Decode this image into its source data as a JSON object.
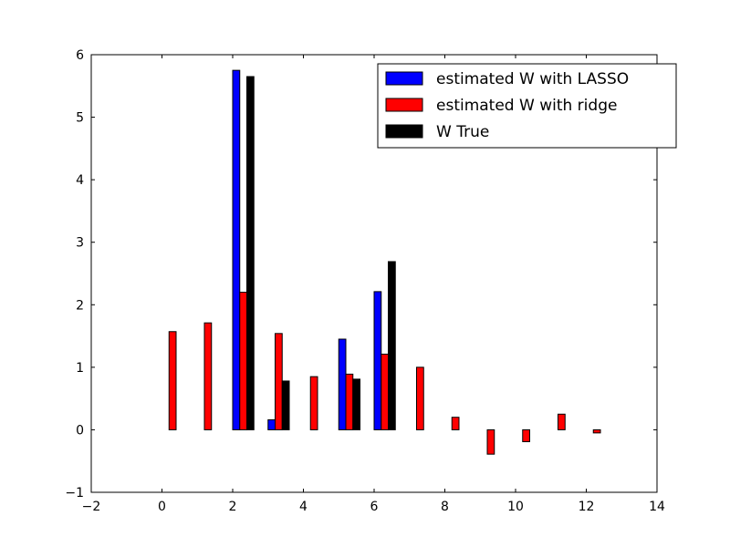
{
  "chart_data": {
    "type": "bar",
    "title": "",
    "xlabel": "",
    "ylabel": "",
    "xlim": [
      -2,
      14
    ],
    "ylim": [
      -1,
      6
    ],
    "xticks": [
      -2,
      0,
      2,
      4,
      6,
      8,
      10,
      12,
      14
    ],
    "yticks": [
      -1,
      0,
      1,
      2,
      3,
      4,
      5,
      6
    ],
    "xtick_labels": [
      "−2",
      "0",
      "2",
      "4",
      "6",
      "8",
      "10",
      "12",
      "14"
    ],
    "ytick_labels": [
      "−1",
      "0",
      "1",
      "2",
      "3",
      "4",
      "5",
      "6"
    ],
    "grid": false,
    "legend_position": "top-right",
    "x": [
      0,
      1,
      2,
      3,
      4,
      5,
      6,
      7,
      8,
      9,
      10,
      11,
      12
    ],
    "series": [
      {
        "name": "estimated W with LASSO",
        "color": "#0000ff",
        "values": [
          0,
          0,
          5.75,
          0.16,
          0,
          1.45,
          2.21,
          0,
          0,
          0,
          0,
          0,
          0
        ]
      },
      {
        "name": "estimated W with ridge",
        "color": "#ff0000",
        "values": [
          1.57,
          1.71,
          2.2,
          1.54,
          0.85,
          0.89,
          1.21,
          1.0,
          0.2,
          -0.39,
          -0.19,
          0.25,
          -0.05
        ]
      },
      {
        "name": "W True",
        "color": "#000000",
        "values": [
          0,
          0,
          5.65,
          0.78,
          0,
          0.81,
          2.69,
          0,
          0,
          0,
          0,
          0,
          0
        ]
      }
    ]
  }
}
